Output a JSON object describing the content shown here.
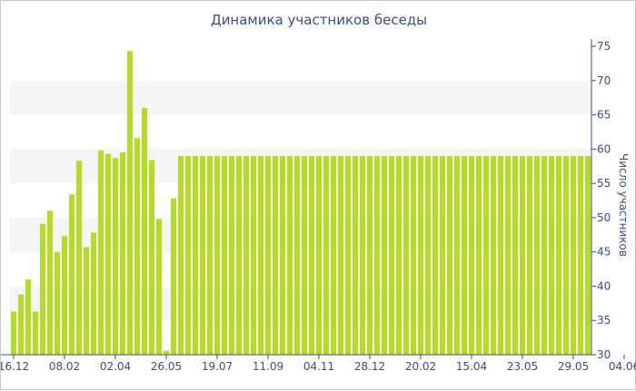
{
  "chart_data": {
    "type": "bar",
    "title": "Динамика участников беседы",
    "xlabel": "",
    "ylabel": "Число участников",
    "y_axis_side": "right",
    "ylim": [
      30,
      75
    ],
    "yticks": [
      30,
      35,
      40,
      45,
      50,
      55,
      60,
      65,
      70,
      75
    ],
    "x_tick_labels": [
      {
        "index": 0,
        "label": "16.12"
      },
      {
        "index": 7,
        "label": "08.02"
      },
      {
        "index": 14,
        "label": "02.04"
      },
      {
        "index": 21,
        "label": "26.05"
      },
      {
        "index": 28,
        "label": "19.07"
      },
      {
        "index": 35,
        "label": "11.09"
      },
      {
        "index": 42,
        "label": "04.11"
      },
      {
        "index": 49,
        "label": "28.12"
      },
      {
        "index": 56,
        "label": "20.02"
      },
      {
        "index": 63,
        "label": "15.04"
      },
      {
        "index": 70,
        "label": "23.05"
      },
      {
        "index": 77,
        "label": "29.05"
      },
      {
        "index": 84,
        "label": "04.06"
      }
    ],
    "bar_color": "#b5d92d",
    "band_color": "#f5f5f5",
    "axis_color": "#3b4f87",
    "values": [
      36.3,
      38.8,
      41.0,
      36.3,
      49.1,
      51.0,
      45.0,
      47.3,
      53.4,
      58.3,
      45.7,
      47.8,
      59.8,
      59.3,
      58.7,
      59.5,
      74.3,
      61.6,
      66.0,
      58.4,
      49.8,
      30.6,
      52.8,
      59.0,
      59,
      59,
      59,
      59,
      59,
      59,
      59,
      59,
      59,
      59,
      59,
      59,
      59,
      59,
      59,
      59,
      59,
      59,
      59,
      59,
      59,
      59,
      59,
      59,
      59,
      59,
      59,
      59,
      59,
      59,
      59,
      59,
      59,
      59,
      59,
      59,
      59,
      59,
      59,
      59,
      59,
      59,
      59,
      59,
      59,
      59,
      59,
      59,
      59,
      59,
      59,
      59,
      59,
      59,
      59,
      59
    ]
  }
}
